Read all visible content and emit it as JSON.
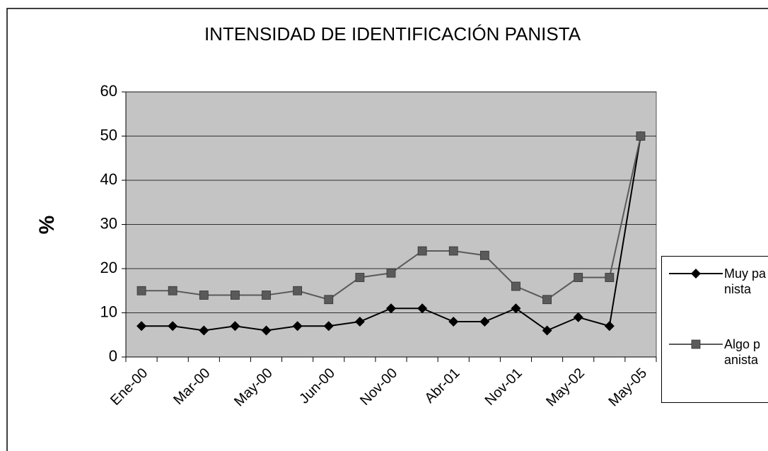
{
  "chart_data": {
    "type": "line",
    "title": "INTENSIDAD DE IDENTIFICACIÓN PANISTA",
    "y_label": "%",
    "categories": [
      "Ene-00",
      null,
      "Mar-00",
      null,
      "May-00",
      null,
      "Jun-00",
      null,
      "Nov-00",
      null,
      "Abr-01",
      null,
      "Nov-01",
      null,
      "May-02",
      null,
      "May-05"
    ],
    "series": [
      {
        "name": "Muy panista",
        "color": "#000000",
        "marker": "diamond",
        "values": [
          7,
          7,
          6,
          7,
          6,
          7,
          7,
          8,
          11,
          11,
          8,
          8,
          11,
          6,
          9,
          7,
          50
        ]
      },
      {
        "name": "Algo panista",
        "color": "#5a5a5a",
        "marker": "square",
        "values": [
          15,
          15,
          14,
          14,
          14,
          15,
          13,
          18,
          19,
          24,
          24,
          23,
          16,
          13,
          18,
          18,
          50
        ]
      }
    ],
    "ylim": [
      0,
      60
    ],
    "yticks": [
      0,
      10,
      20,
      30,
      40,
      50,
      60
    ],
    "grid": true
  }
}
